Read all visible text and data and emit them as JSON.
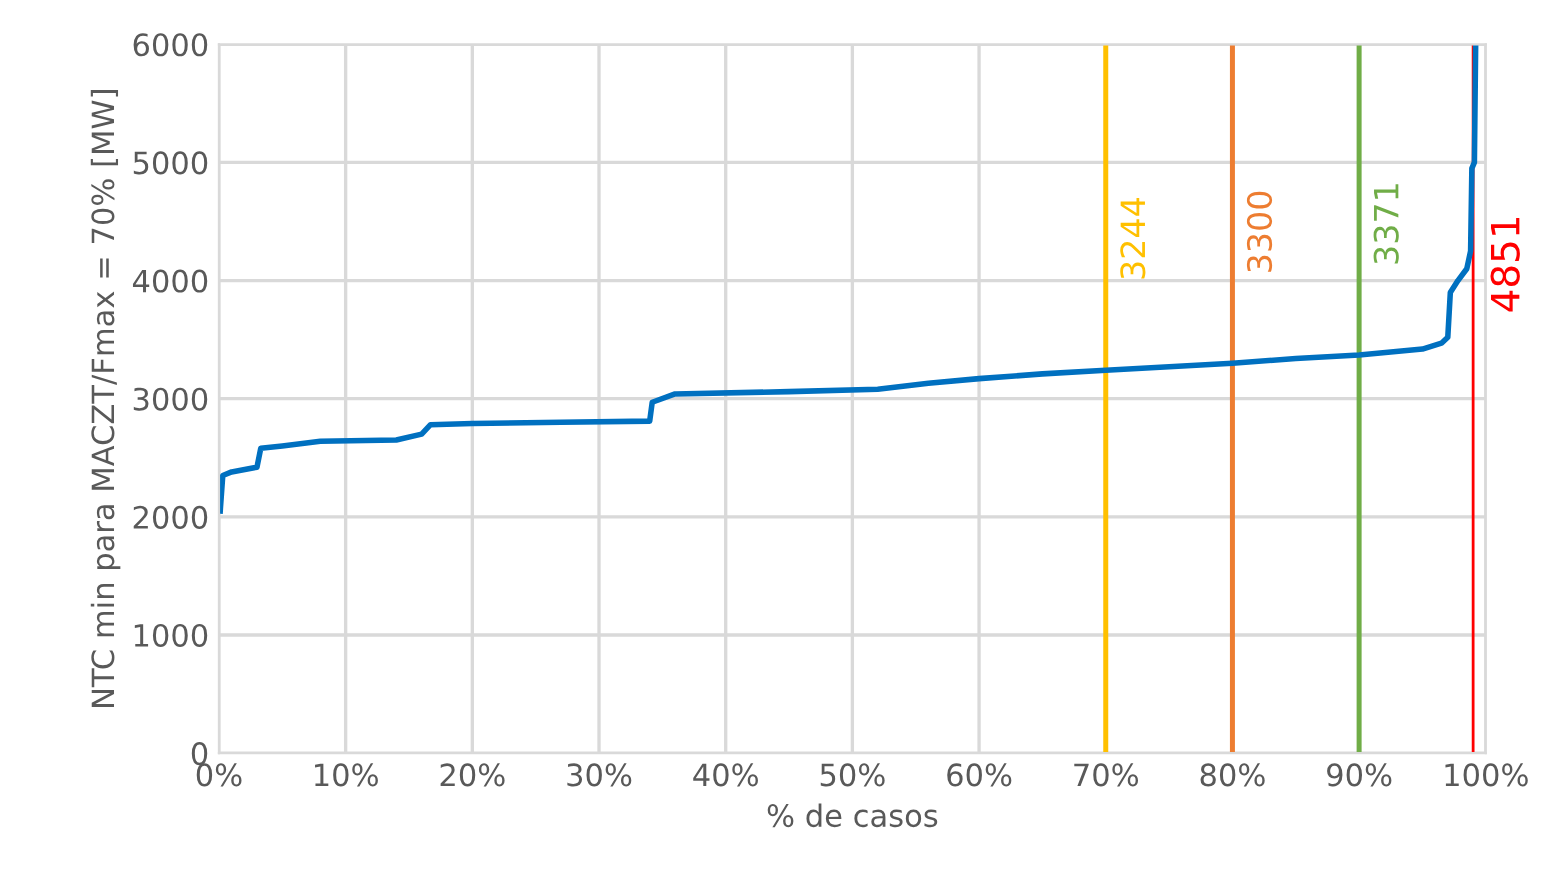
{
  "chart_data": {
    "type": "line",
    "xlabel": "% de casos",
    "ylabel": "NTC min para MACZT/Fmax = 70% [MW]",
    "x": [
      0.1,
      0.3,
      1,
      3,
      3.3,
      5,
      8,
      14,
      16,
      16.7,
      20,
      27,
      34,
      34.2,
      36,
      45,
      52,
      56,
      60,
      65,
      70,
      75,
      80,
      85,
      90,
      95,
      96.5,
      97,
      97.2,
      97.8,
      98.5,
      98.8,
      98.9,
      99.1,
      99.2
    ],
    "series": [
      {
        "color": "#0070c0",
        "values": [
          2050,
          2350,
          2380,
          2420,
          2580,
          2600,
          2640,
          2650,
          2700,
          2780,
          2790,
          2800,
          2810,
          2970,
          3040,
          3060,
          3080,
          3130,
          3170,
          3210,
          3240,
          3270,
          3300,
          3340,
          3370,
          3420,
          3470,
          3520,
          3900,
          4000,
          4100,
          4250,
          4950,
          5000,
          6000
        ]
      }
    ],
    "xlim": [
      0,
      100
    ],
    "ylim": [
      0,
      6000
    ],
    "xticks": [
      {
        "value": 0,
        "label": "0%"
      },
      {
        "value": 10,
        "label": "10%"
      },
      {
        "value": 20,
        "label": "20%"
      },
      {
        "value": 30,
        "label": "30%"
      },
      {
        "value": 40,
        "label": "40%"
      },
      {
        "value": 50,
        "label": "50%"
      },
      {
        "value": 60,
        "label": "60%"
      },
      {
        "value": 70,
        "label": "70%"
      },
      {
        "value": 80,
        "label": "80%"
      },
      {
        "value": 90,
        "label": "90%"
      },
      {
        "value": 100,
        "label": "100%"
      }
    ],
    "yticks": [
      0,
      1000,
      2000,
      3000,
      4000,
      5000,
      6000
    ],
    "grid": true,
    "ref_lines": [
      {
        "axis": "x",
        "value": 70,
        "color": "#ffc000"
      },
      {
        "axis": "x",
        "value": 80,
        "color": "#ed7d31"
      },
      {
        "axis": "x",
        "value": 90,
        "color": "#70ad47"
      },
      {
        "axis": "x",
        "value": 99,
        "color": "#ff0000"
      }
    ],
    "annotations": [
      {
        "text": "3244",
        "x": 70,
        "y": 3244
      },
      {
        "text": "3300",
        "x": 80,
        "y": 3300
      },
      {
        "text": "3371",
        "x": 90,
        "y": 3371
      },
      {
        "text": "4851",
        "x": 99,
        "y": 4851
      }
    ]
  }
}
